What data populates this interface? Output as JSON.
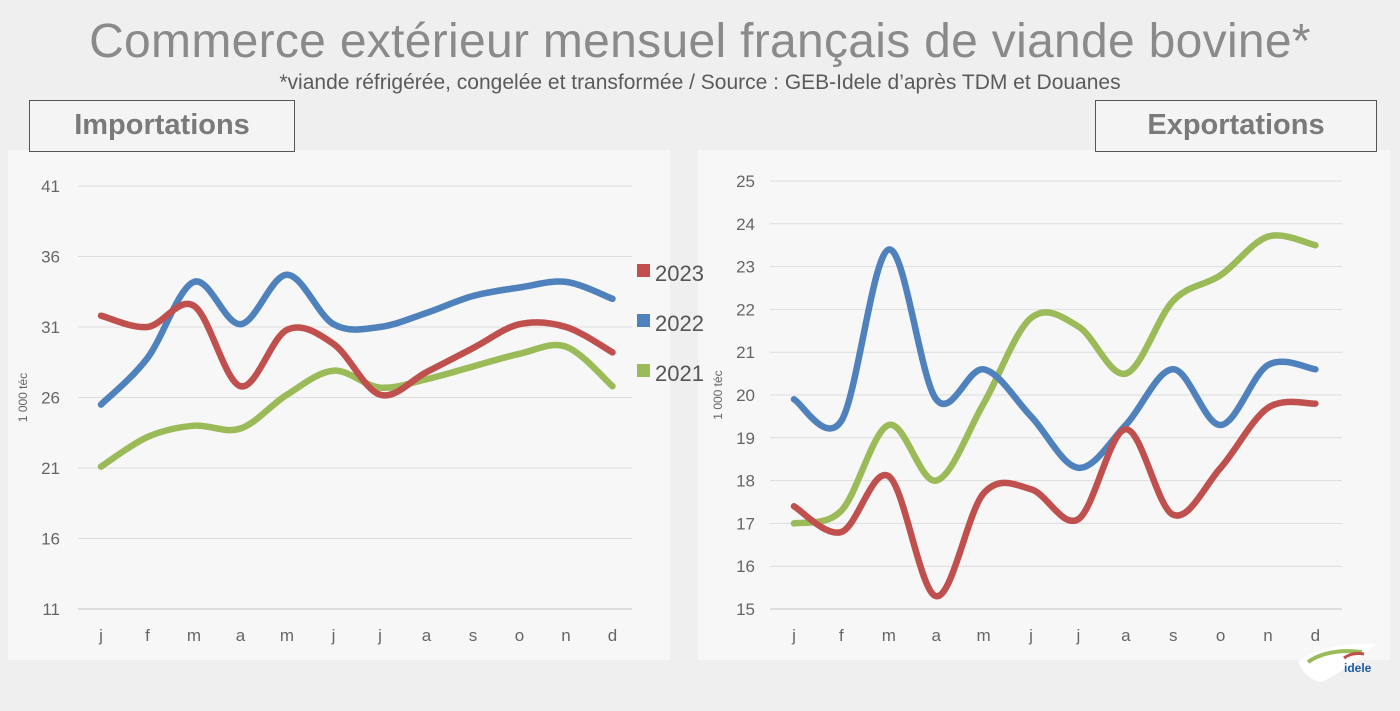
{
  "title": "Commerce extérieur mensuel français de viande bovine*",
  "subtitle": "*viande réfrigérée, congelée et transformée / Source : GEB-Idele d’après TDM et Douanes",
  "logo_text": "idele",
  "colors": {
    "2023": "#c0504d",
    "2022": "#4f81bd",
    "2021": "#9bbb59"
  },
  "chart_data": [
    {
      "type": "line",
      "title": "Importations",
      "ylabel": "1 000 téc",
      "categories": [
        "j",
        "f",
        "m",
        "a",
        "m",
        "j",
        "j",
        "a",
        "s",
        "o",
        "n",
        "d"
      ],
      "ylim": [
        11,
        41
      ],
      "yticks": [
        11,
        16,
        21,
        26,
        31,
        36,
        41
      ],
      "series": [
        {
          "name": "2023",
          "values": [
            31.8,
            31.0,
            32.5,
            26.8,
            30.8,
            29.8,
            26.2,
            27.8,
            29.5,
            31.2,
            31.0,
            29.2
          ]
        },
        {
          "name": "2022",
          "values": [
            25.5,
            28.8,
            34.2,
            31.2,
            34.7,
            31.2,
            31.0,
            32.0,
            33.2,
            33.8,
            34.2,
            33.0
          ]
        },
        {
          "name": "2021",
          "values": [
            21.1,
            23.2,
            24.0,
            23.8,
            26.2,
            27.9,
            26.7,
            27.3,
            28.2,
            29.1,
            29.6,
            26.8
          ]
        }
      ],
      "legend": [
        "2023",
        "2022",
        "2021"
      ],
      "grid": true
    },
    {
      "type": "line",
      "title": "Exportations",
      "ylabel": "1 000 téc",
      "categories": [
        "j",
        "f",
        "m",
        "a",
        "m",
        "j",
        "j",
        "a",
        "s",
        "o",
        "n",
        "d"
      ],
      "ylim": [
        15,
        25
      ],
      "yticks": [
        15,
        16,
        17,
        18,
        19,
        20,
        21,
        22,
        23,
        24,
        25
      ],
      "series": [
        {
          "name": "2023",
          "values": [
            17.4,
            16.8,
            18.1,
            15.3,
            17.7,
            17.8,
            17.1,
            19.2,
            17.2,
            18.3,
            19.7,
            19.8
          ]
        },
        {
          "name": "2022",
          "values": [
            19.9,
            19.4,
            23.4,
            19.9,
            20.6,
            19.5,
            18.3,
            19.3,
            20.6,
            19.3,
            20.7,
            20.6
          ]
        },
        {
          "name": "2021",
          "values": [
            17.0,
            17.3,
            19.3,
            18.0,
            19.8,
            21.8,
            21.6,
            20.5,
            22.2,
            22.8,
            23.7,
            23.5
          ]
        }
      ],
      "grid": true
    }
  ]
}
